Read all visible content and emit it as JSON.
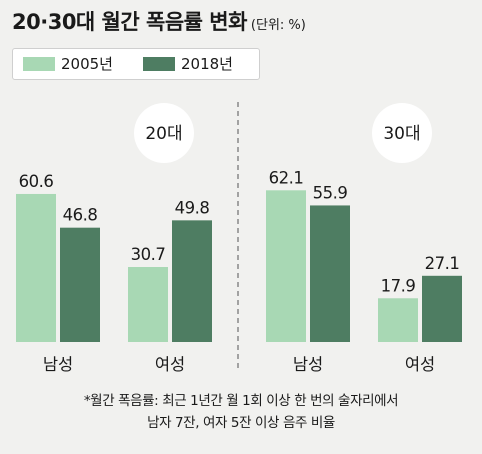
{
  "title": "20·30대 월간 폭음률 변화",
  "unit": "(단위: %)",
  "colors": {
    "light": "#a8d8b4",
    "dark": "#4e7d62",
    "background": "#f1f1ef",
    "divider": "#888888"
  },
  "chart_data": [
    {
      "type": "bar",
      "group_label": "20대",
      "categories": [
        "남성",
        "여성"
      ],
      "series": [
        {
          "name": "2005년",
          "values": [
            60.6,
            30.7
          ]
        },
        {
          "name": "2018년",
          "values": [
            46.8,
            49.8
          ]
        }
      ],
      "ylim": [
        0,
        70
      ],
      "grid": false,
      "legend": "top-left"
    },
    {
      "type": "bar",
      "group_label": "30대",
      "categories": [
        "남성",
        "여성"
      ],
      "series": [
        {
          "name": "2005년",
          "values": [
            62.1,
            17.9
          ]
        },
        {
          "name": "2018년",
          "values": [
            55.9,
            27.1
          ]
        }
      ],
      "ylim": [
        0,
        70
      ],
      "grid": false,
      "legend": "top-left"
    }
  ],
  "footnote": {
    "line1": "*월간 폭음률: 최근 1년간 월 1회 이상 한 번의 술자리에서",
    "line2": "남자 7잔, 여자 5잔 이상 음주 비율"
  }
}
